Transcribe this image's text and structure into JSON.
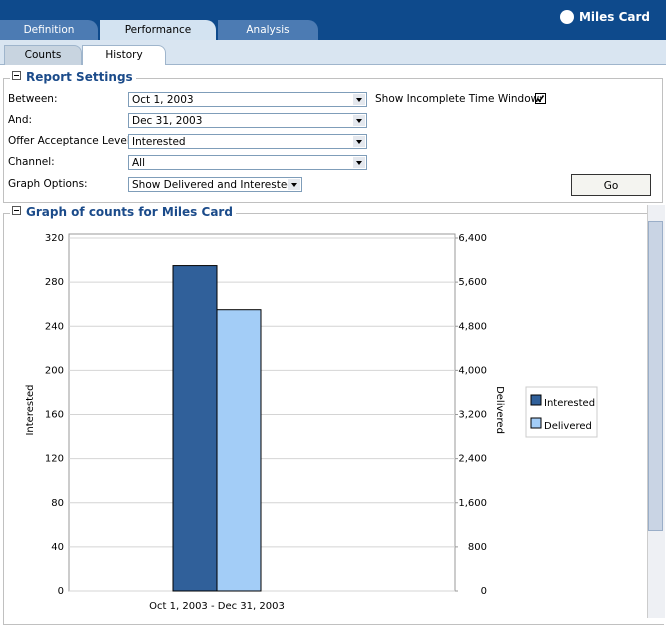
{
  "header": {
    "tabs": [
      "Definition",
      "Performance",
      "Analysis"
    ],
    "brand": "Miles Card"
  },
  "subtabs": [
    "Counts",
    "History"
  ],
  "report_settings": {
    "title": "Report Settings",
    "fields": [
      {
        "label": "Between:",
        "value": "Oct 1, 2003"
      },
      {
        "label": "And:",
        "value": "Dec 31, 2003"
      },
      {
        "label": "Offer Acceptance Level:",
        "value": "Interested"
      },
      {
        "label": "Channel:",
        "value": "All"
      },
      {
        "label": "Graph Options:",
        "value": "Show Delivered and Interested"
      }
    ],
    "incomplete_window": {
      "label": "Show Incomplete Time Window:",
      "checked": true
    },
    "button": "Go"
  },
  "graph_section": {
    "title": "Graph of counts for Miles Card"
  },
  "chart_data": {
    "type": "bar",
    "categories": [
      "Oct 1, 2003 - Dec 31, 2003"
    ],
    "series": [
      {
        "name": "Interested",
        "color": "#30609a",
        "values": [
          295
        ]
      },
      {
        "name": "Delivered",
        "color": "#a3cdf7",
        "values": [
          5100
        ],
        "axis": "y2"
      }
    ],
    "ylabel": "Interested",
    "y2label": "Delivered",
    "ylim": [
      0,
      320
    ],
    "yticks": [
      0,
      40,
      80,
      120,
      160,
      200,
      240,
      280,
      320
    ],
    "y2lim": [
      0,
      6400
    ],
    "y2ticks": [
      0,
      800,
      {
        "value": 1600,
        "label": "1,600"
      },
      {
        "value": 2400,
        "label": "2,400"
      },
      {
        "value": 3200,
        "label": "3,200"
      },
      {
        "value": 4000,
        "label": "4,000"
      },
      {
        "value": 4800,
        "label": "4,800"
      },
      {
        "value": 5600,
        "label": "5,600"
      },
      {
        "value": 6400,
        "label": "6,400"
      }
    ],
    "grid": true,
    "legend": "right"
  }
}
